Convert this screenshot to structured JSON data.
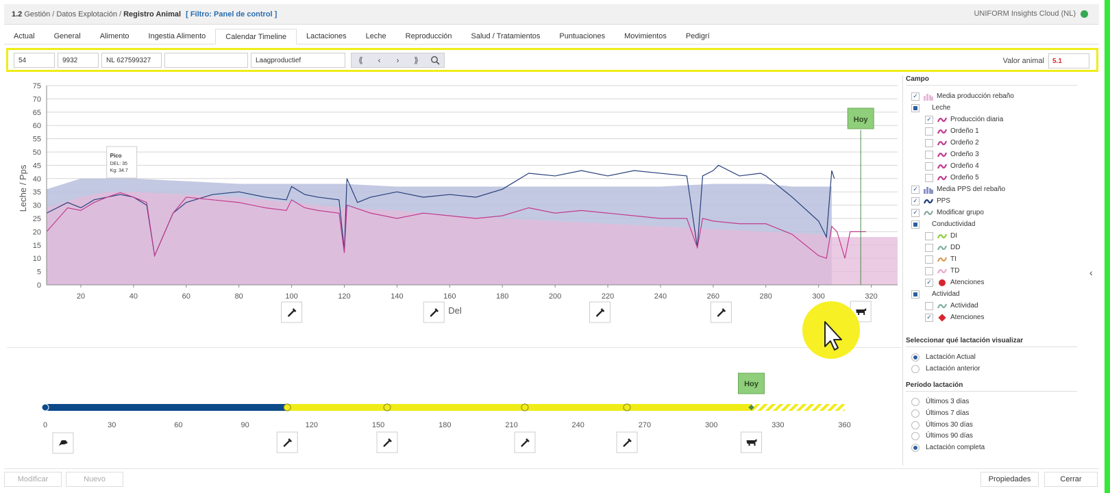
{
  "header": {
    "section": "1.2",
    "path1": "Gestión",
    "path2": "Datos Explotación",
    "page": "Registro Animal",
    "filter": "[ Filtro: Panel de control ]",
    "app": "UNIFORM Insights Cloud (NL)"
  },
  "tabs": [
    {
      "label": "Actual"
    },
    {
      "label": "General"
    },
    {
      "label": "Alimento"
    },
    {
      "label": "Ingestia Alimento"
    },
    {
      "label": "Calendar Timeline"
    },
    {
      "label": "Lactaciones"
    },
    {
      "label": "Leche"
    },
    {
      "label": "Reproducción"
    },
    {
      "label": "Salud / Tratamientos"
    },
    {
      "label": "Puntuaciones"
    },
    {
      "label": "Movimientos"
    },
    {
      "label": "Pedigrí"
    }
  ],
  "toolbar": {
    "field1": "54",
    "field2": "9932",
    "field3": "NL 627599327",
    "field4": "",
    "field5": "Laagproductief",
    "nav_first": "⟪",
    "nav_prev": "‹",
    "nav_next": "›",
    "nav_last": "⟫",
    "valor_label": "Valor animal",
    "valor_value": "5.1"
  },
  "chart_data": {
    "type": "line",
    "ylabel": "Leche / Pps",
    "xlabel": "Del",
    "y_ticks": [
      "0",
      "5",
      "10",
      "15",
      "20",
      "25",
      "30",
      "35",
      "40",
      "45",
      "50",
      "55",
      "60",
      "65",
      "70",
      "75"
    ],
    "x_ticks": [
      "20",
      "40",
      "60",
      "80",
      "100",
      "120",
      "140",
      "160",
      "180",
      "200",
      "220",
      "240",
      "260",
      "280",
      "300",
      "320"
    ],
    "ylim": [
      0,
      75
    ],
    "xlim": [
      7,
      330
    ],
    "today_label": "Hoy",
    "today_del": 316,
    "peak": {
      "title": "Pico",
      "line1": "DEL: 35",
      "line2": "Kg: 34.7",
      "del": 35,
      "kg": 34.7
    },
    "series": [
      {
        "name": "Media producción rebaño",
        "color": "#e4b9da",
        "points": [
          [
            7,
            29
          ],
          [
            20,
            33
          ],
          [
            30,
            35
          ],
          [
            40,
            35
          ],
          [
            60,
            34
          ],
          [
            80,
            33
          ],
          [
            100,
            31
          ],
          [
            120,
            29
          ],
          [
            140,
            28
          ],
          [
            160,
            26
          ],
          [
            180,
            25
          ],
          [
            200,
            24
          ],
          [
            220,
            23
          ],
          [
            240,
            22
          ],
          [
            260,
            21
          ],
          [
            280,
            20
          ],
          [
            300,
            19
          ],
          [
            305,
            18
          ],
          [
            310,
            18
          ],
          [
            320,
            18
          ],
          [
            330,
            18
          ]
        ]
      },
      {
        "name": "Media PPS del rebaño",
        "color": "#b8bfdd",
        "points": [
          [
            7,
            36
          ],
          [
            20,
            40
          ],
          [
            40,
            40
          ],
          [
            60,
            39
          ],
          [
            80,
            38
          ],
          [
            100,
            38
          ],
          [
            120,
            38
          ],
          [
            140,
            37
          ],
          [
            160,
            37
          ],
          [
            180,
            37
          ],
          [
            200,
            37
          ],
          [
            220,
            37
          ],
          [
            240,
            37
          ],
          [
            260,
            38
          ],
          [
            280,
            38
          ],
          [
            290,
            37
          ],
          [
            300,
            37
          ],
          [
            305,
            37
          ]
        ]
      },
      {
        "name": "PPS",
        "color": "#263f7a",
        "points": [
          [
            7,
            27
          ],
          [
            15,
            31
          ],
          [
            20,
            29
          ],
          [
            25,
            32
          ],
          [
            30,
            33
          ],
          [
            35,
            34
          ],
          [
            40,
            33
          ],
          [
            45,
            30
          ],
          [
            48,
            11
          ],
          [
            55,
            27
          ],
          [
            60,
            31
          ],
          [
            70,
            34
          ],
          [
            80,
            35
          ],
          [
            90,
            33
          ],
          [
            98,
            32
          ],
          [
            100,
            37
          ],
          [
            105,
            34
          ],
          [
            110,
            33
          ],
          [
            118,
            32
          ],
          [
            120,
            13
          ],
          [
            121,
            40
          ],
          [
            125,
            31
          ],
          [
            130,
            33
          ],
          [
            140,
            35
          ],
          [
            150,
            33
          ],
          [
            160,
            34
          ],
          [
            170,
            33
          ],
          [
            180,
            36
          ],
          [
            185,
            39
          ],
          [
            190,
            42
          ],
          [
            200,
            41
          ],
          [
            210,
            43
          ],
          [
            220,
            41
          ],
          [
            230,
            43
          ],
          [
            240,
            42
          ],
          [
            250,
            41
          ],
          [
            254,
            14
          ],
          [
            256,
            41
          ],
          [
            260,
            43
          ],
          [
            262,
            45
          ],
          [
            270,
            41
          ],
          [
            278,
            42
          ],
          [
            280,
            41
          ],
          [
            290,
            33
          ],
          [
            300,
            24
          ],
          [
            303,
            18
          ],
          [
            305,
            43
          ],
          [
            306,
            40
          ]
        ]
      },
      {
        "name": "Producción diaria",
        "color": "#c23b8f",
        "points": [
          [
            7,
            20
          ],
          [
            15,
            29
          ],
          [
            20,
            28
          ],
          [
            25,
            31
          ],
          [
            30,
            33
          ],
          [
            35,
            34.7
          ],
          [
            40,
            33
          ],
          [
            45,
            31
          ],
          [
            48,
            11
          ],
          [
            55,
            27
          ],
          [
            60,
            33
          ],
          [
            70,
            32
          ],
          [
            80,
            31
          ],
          [
            90,
            29
          ],
          [
            98,
            28
          ],
          [
            100,
            32
          ],
          [
            105,
            29
          ],
          [
            110,
            28
          ],
          [
            118,
            27
          ],
          [
            120,
            12
          ],
          [
            121,
            30
          ],
          [
            130,
            27
          ],
          [
            140,
            25
          ],
          [
            150,
            27
          ],
          [
            160,
            26
          ],
          [
            170,
            25
          ],
          [
            180,
            26
          ],
          [
            190,
            29
          ],
          [
            200,
            27
          ],
          [
            210,
            28
          ],
          [
            220,
            27
          ],
          [
            230,
            26
          ],
          [
            240,
            25
          ],
          [
            250,
            25
          ],
          [
            254,
            14
          ],
          [
            256,
            25
          ],
          [
            260,
            24
          ],
          [
            270,
            23
          ],
          [
            280,
            23
          ],
          [
            290,
            19
          ],
          [
            300,
            11
          ],
          [
            303,
            10
          ],
          [
            305,
            22
          ],
          [
            307,
            20
          ],
          [
            310,
            10
          ],
          [
            312,
            20
          ],
          [
            318,
            20
          ]
        ]
      }
    ]
  },
  "timeline": {
    "today_label": "Hoy",
    "ticks": [
      "0",
      "30",
      "60",
      "90",
      "120",
      "150",
      "180",
      "210",
      "240",
      "270",
      "300",
      "330",
      "360"
    ],
    "xlim": [
      0,
      370
    ],
    "blue_end": 109,
    "yellow_end": 318,
    "markers": [
      0,
      109,
      154,
      216,
      262,
      318
    ]
  },
  "panel": {
    "title_campo": "Campo",
    "items": [
      {
        "label": "Media producción rebaño",
        "check": "✓"
      },
      {
        "label": "Leche",
        "check": ""
      },
      {
        "label": "Producción diaria",
        "check": "✓"
      },
      {
        "label": "Ordeño 1",
        "check": ""
      },
      {
        "label": "Ordeño 2",
        "check": ""
      },
      {
        "label": "Ordeño 3",
        "check": ""
      },
      {
        "label": "Ordeño 4",
        "check": ""
      },
      {
        "label": "Ordeño 5",
        "check": ""
      },
      {
        "label": "Media PPS del rebaño",
        "check": "✓"
      },
      {
        "label": "PPS",
        "check": "✓"
      },
      {
        "label": "Modificar grupo",
        "check": "✓"
      },
      {
        "label": "Conductividad",
        "check": ""
      },
      {
        "label": "DI",
        "check": ""
      },
      {
        "label": "DD",
        "check": ""
      },
      {
        "label": "TI",
        "check": ""
      },
      {
        "label": "TD",
        "check": ""
      },
      {
        "label": "Atenciones",
        "check": "✓"
      },
      {
        "label": "Actividad",
        "check": ""
      },
      {
        "label": "Actividad",
        "check": ""
      },
      {
        "label": "Atenciones",
        "check": "✓"
      }
    ],
    "title_lact": "Seleccionar qué lactación visualizar",
    "lact": [
      {
        "label": "Lactación Actual"
      },
      {
        "label": "Lactación anterior"
      }
    ],
    "title_period": "Período lactación",
    "period": [
      {
        "label": "Últimos 3 días"
      },
      {
        "label": "Últimos 7 días"
      },
      {
        "label": "Últimos 30 días"
      },
      {
        "label": "Últimos 90 días"
      },
      {
        "label": "Lactación completa"
      }
    ],
    "colors": {
      "leche_icon": "#c23b8f",
      "pps_icon": "#1f3b7a",
      "dot_red": "#d7262e"
    }
  },
  "footer": {
    "modificar": "Modificar",
    "nuevo": "Nuevo",
    "propiedades": "Propiedades",
    "cerrar": "Cerrar"
  }
}
